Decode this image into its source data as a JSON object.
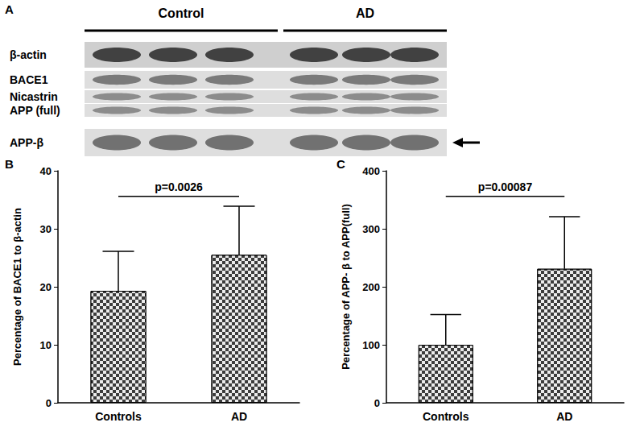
{
  "blot": {
    "panel": "A",
    "groups": [
      "Control",
      "AD"
    ],
    "rows": [
      "β-actin",
      "BACE1",
      "Nicastrin",
      "APP (full)",
      "APP-β"
    ]
  },
  "chart_data": [
    {
      "type": "bar",
      "panel": "B",
      "categories": [
        "Controls",
        "AD"
      ],
      "values": [
        19.3,
        25.5
      ],
      "errors": [
        6.8,
        8.4
      ],
      "color": "#3c3c3c",
      "y_label": "Percentage of BACE1 to β-actin",
      "ylim": [
        0,
        40
      ],
      "yticks": [
        0,
        10,
        20,
        30,
        40
      ],
      "annotation": "p=0.0026",
      "grid": false
    },
    {
      "type": "bar",
      "panel": "C",
      "categories": [
        "Controls",
        "AD"
      ],
      "values": [
        100,
        231
      ],
      "errors": [
        52,
        90
      ],
      "color": "#3c3c3c",
      "y_label": "Percentage of APP- β to APP(full)",
      "ylim": [
        0,
        400
      ],
      "yticks": [
        0,
        100,
        200,
        300,
        400
      ],
      "annotation": "p=0.00087",
      "grid": false
    }
  ]
}
